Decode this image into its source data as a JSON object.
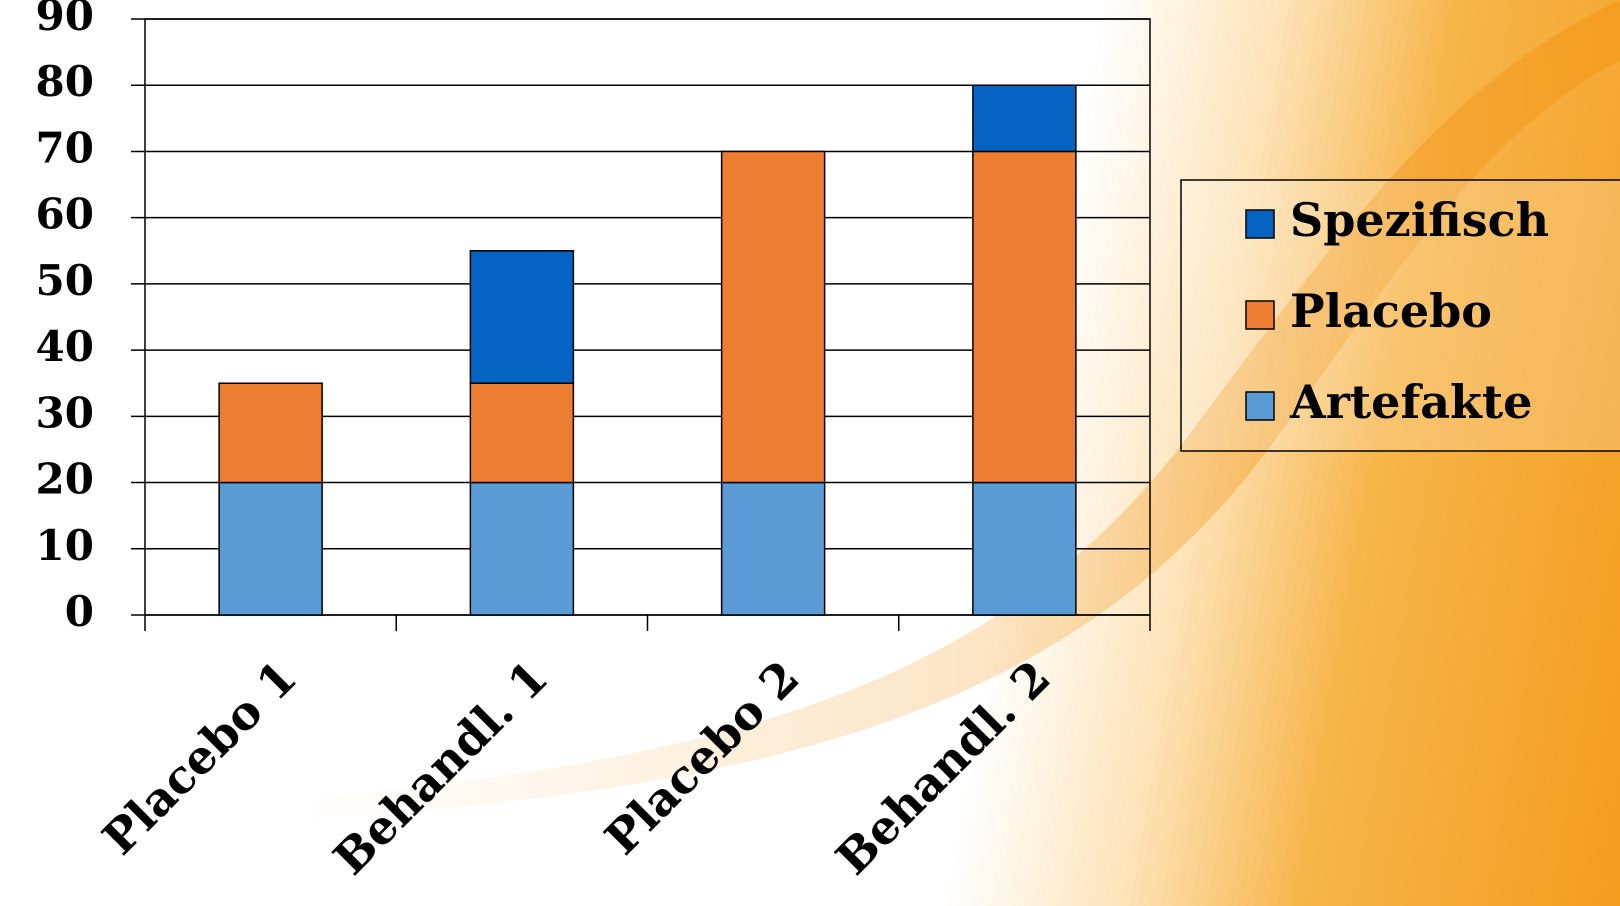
{
  "chart_data": {
    "type": "stacked_bar",
    "categories": [
      "Placebo 1",
      "Behandl. 1",
      "Placebo 2",
      "Behandl. 2"
    ],
    "series": [
      {
        "name": "Artefakte",
        "color": "#5b9bd5",
        "values": [
          20,
          20,
          20,
          20
        ]
      },
      {
        "name": "Placebo",
        "color": "#ed7d31",
        "values": [
          15,
          15,
          50,
          50
        ]
      },
      {
        "name": "Spezifisch",
        "color": "#0563c1",
        "values": [
          0,
          20,
          0,
          10
        ]
      }
    ],
    "ylim": [
      0,
      90
    ],
    "yticks": [
      0,
      10,
      20,
      30,
      40,
      50,
      60,
      70,
      80,
      90
    ],
    "grid": true
  }
}
